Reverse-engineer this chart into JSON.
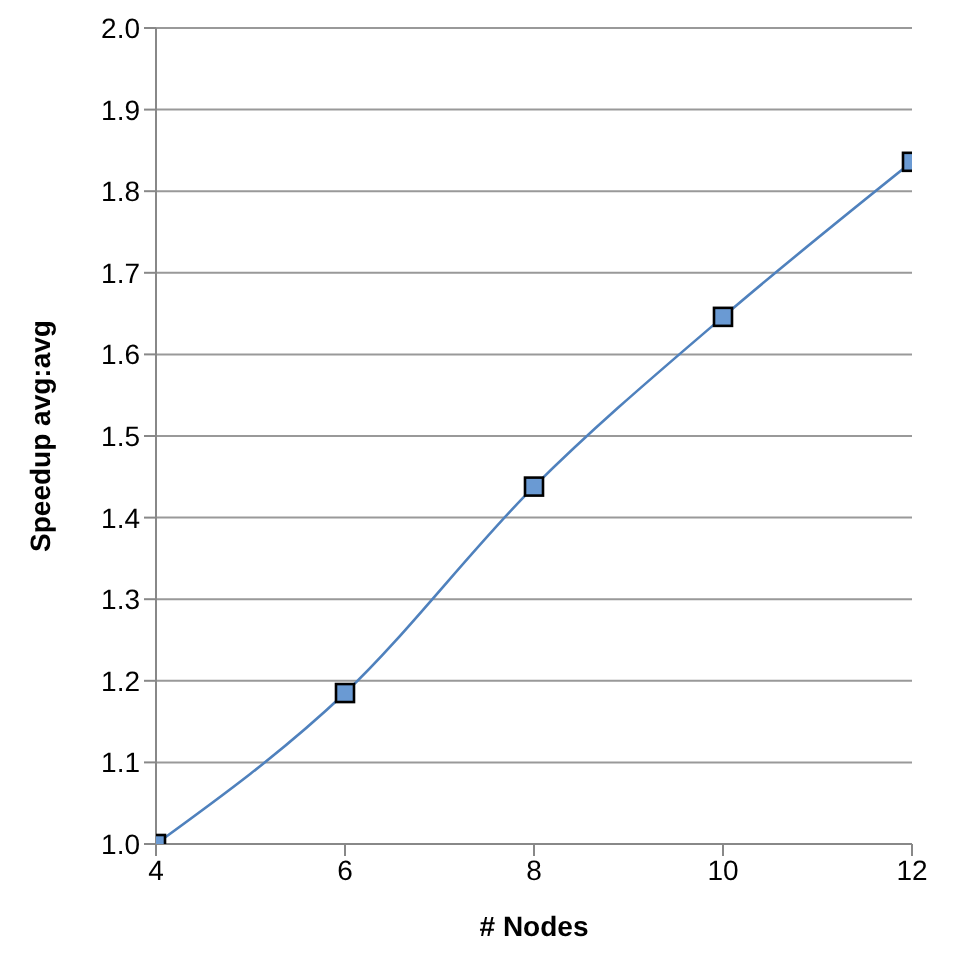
{
  "chart_data": {
    "type": "line",
    "xlabel": "# Nodes",
    "ylabel": "Speedup avg:avg",
    "x": [
      4,
      6,
      8,
      10,
      12
    ],
    "series": [
      {
        "color": "#4f81bd",
        "values": [
          1.0,
          1.185,
          1.438,
          1.646,
          1.836
        ]
      }
    ],
    "xlim": [
      4,
      12
    ],
    "xticks": [
      4,
      6,
      8,
      10,
      12
    ],
    "ylim": [
      1.0,
      2.0
    ],
    "yticks": [
      {
        "value": 1.0,
        "label": "1.0"
      },
      1.1,
      1.2,
      1.3,
      1.4,
      1.5,
      1.6,
      1.7,
      1.8,
      1.9,
      {
        "value": 2.0,
        "label": "2.0"
      }
    ],
    "grid": "y",
    "marker": "square",
    "line_style": "solid"
  }
}
